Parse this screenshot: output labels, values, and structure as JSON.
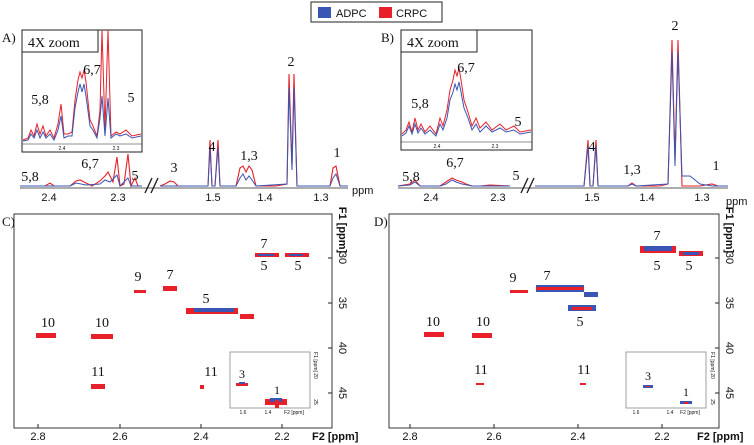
{
  "legend": {
    "items": [
      {
        "label": "ADPC",
        "color": "#3a55b4"
      },
      {
        "label": "CRPC",
        "color": "#e8202a"
      }
    ]
  },
  "panels": {
    "A": {
      "label": "A)",
      "inset_title": "4X zoom",
      "inset_peaks": [
        "5,8",
        "6,7",
        "5"
      ],
      "inset_ticks": [
        "2.4",
        "2.3"
      ],
      "axis_unit": "ppm",
      "ticks_left": [
        "2.4",
        "2.3"
      ],
      "ticks_right": [
        "1.5",
        "1.4",
        "1.3"
      ],
      "peaks": [
        "5,8",
        "6,7",
        "5",
        "3",
        "4",
        "1,3",
        "2",
        "1"
      ]
    },
    "B": {
      "label": "B)",
      "inset_title": "4X zoom",
      "inset_peaks": [
        "5,8",
        "6,7",
        "5"
      ],
      "inset_ticks": [
        "2.4",
        "2.3"
      ],
      "axis_unit": "ppm",
      "ticks_left": [
        "2.4",
        "2.3"
      ],
      "ticks_right": [
        "1.5",
        "1.4",
        "1.3"
      ],
      "peaks": [
        "5,8",
        "6,7",
        "5",
        "4",
        "1,3",
        "2",
        "1"
      ]
    },
    "C": {
      "label": "C)",
      "xlabel": "F2 [ppm]",
      "ylabel": "F1 [ppm]",
      "xticks": [
        "2.8",
        "2.6",
        "2.4",
        "2.2",
        "2.0"
      ],
      "yticks": [
        "30",
        "35",
        "40",
        "45"
      ],
      "peaks": [
        "7",
        "5",
        "5",
        "9",
        "7",
        "5",
        "10",
        "10",
        "11",
        "11"
      ],
      "inset": {
        "xlabel": "F2 [ppm]",
        "ylabel": "F1 [ppm]",
        "xticks": [
          "1.6",
          "1.4"
        ],
        "yticks": [
          "20",
          "25"
        ],
        "peaks": [
          "3",
          "1"
        ]
      }
    },
    "D": {
      "label": "D)",
      "xlabel": "F2 [ppm]",
      "ylabel": "F1 [ppm]",
      "xticks": [
        "2.8",
        "2.6",
        "2.4",
        "2.2",
        "2.0"
      ],
      "yticks": [
        "30",
        "35",
        "40",
        "45"
      ],
      "peaks": [
        "7",
        "5",
        "5",
        "9",
        "7",
        "5",
        "10",
        "10",
        "11",
        "11"
      ],
      "inset": {
        "xlabel": "F2 [ppm]",
        "ylabel": "F1 [ppm]",
        "xticks": [
          "1.6",
          "1.4"
        ],
        "yticks": [
          "20",
          "25"
        ],
        "peaks": [
          "3",
          "1"
        ]
      }
    }
  }
}
